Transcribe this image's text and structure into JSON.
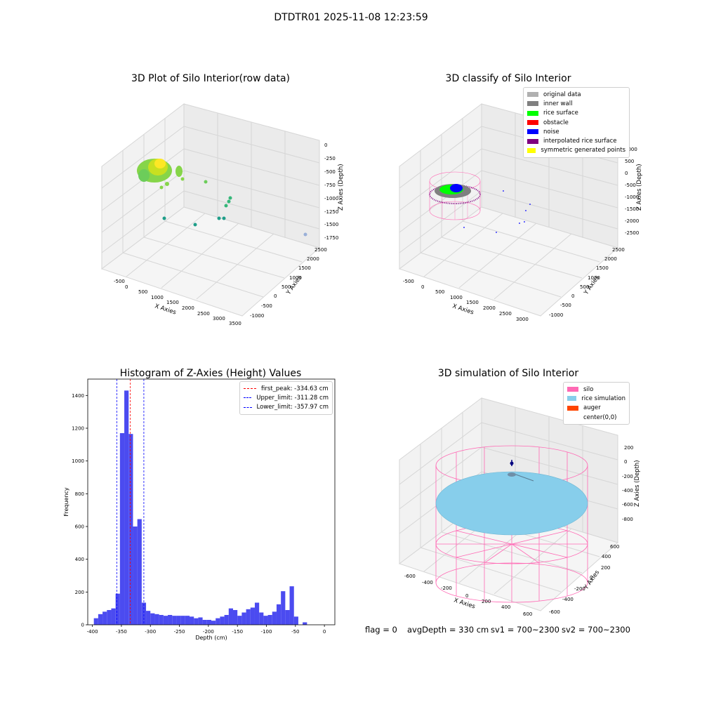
{
  "figure": {
    "suptitle": "DTDTR01 2025-11-08 12:23:59"
  },
  "status": {
    "flag": "flag = 0",
    "avg_depth": "avgDepth = 330 cm",
    "sv1": "sv1 = 700~2300",
    "sv2": "sv2 = 700~2300"
  },
  "colors": {
    "hist_bar": "#4b4bf0",
    "first_peak": "#ff0000",
    "limit": "#0000ff",
    "original_data": "#b0b0b0",
    "inner_wall": "#808080",
    "rice_surface": "#00ff00",
    "obstacle": "#ff0000",
    "noise": "#0000ff",
    "interpolated_rice_surface": "#800080",
    "symmetric_generated_points": "#ffff00",
    "silo": "#ff69b4",
    "rice_simulation": "#87ceeb",
    "auger": "#ff4500"
  },
  "chart_data": [
    {
      "type": "scatter3d",
      "title": "3D Plot of Silo Interior(row data)",
      "xlabel": "X Axies",
      "ylabel": "Y Axies",
      "zlabel": "Z Axies (Depth)",
      "xticks": [
        "-500",
        "0",
        "500",
        "1000",
        "1500",
        "2000",
        "2500",
        "3000",
        "3500"
      ],
      "yticks": [
        "-1000",
        "-500",
        "0",
        "500",
        "1000",
        "1500",
        "2000",
        "2500"
      ],
      "zticks": [
        "0",
        "-250",
        "-500",
        "-750",
        "-1000",
        "-1250",
        "-1500",
        "-1750"
      ]
    },
    {
      "type": "scatter3d",
      "title": "3D classify of Silo Interior",
      "xlabel": "X Axies",
      "ylabel": "Y Axies",
      "zlabel": "Z Axies (Depth)",
      "xticks": [
        "-500",
        "0",
        "500",
        "1000",
        "1500",
        "2000",
        "2500",
        "3000"
      ],
      "yticks": [
        "-1000",
        "-500",
        "0",
        "500",
        "1000",
        "1500",
        "2000",
        "2500"
      ],
      "zticks": [
        "1000",
        "500",
        "0",
        "-500",
        "-1000",
        "-1500",
        "-2000",
        "-2500"
      ],
      "legend": [
        "original data",
        "inner wall",
        "rice surface",
        "obstacle",
        "noise",
        "interpolated rice surface",
        "symmetric generated points"
      ]
    },
    {
      "type": "bar",
      "title": "Histogram of Z-Axies (Height) Values",
      "xlabel": "Depth (cm)",
      "ylabel": "Frequency",
      "xlim": [
        -408,
        18
      ],
      "ylim": [
        0,
        1500
      ],
      "xticks": [
        -400,
        -350,
        -300,
        -250,
        -200,
        -150,
        -100,
        -50,
        0
      ],
      "yticks": [
        0,
        200,
        400,
        600,
        800,
        1000,
        1200,
        1400
      ],
      "bin_width": 7.5,
      "bin_starts": [
        -397.5,
        -390,
        -382.5,
        -375,
        -367.5,
        -360,
        -352.5,
        -345,
        -337.5,
        -330,
        -322.5,
        -315,
        -307.5,
        -300,
        -292.5,
        -285,
        -277.5,
        -270,
        -262.5,
        -255,
        -247.5,
        -240,
        -232.5,
        -225,
        -217.5,
        -210,
        -202.5,
        -195,
        -187.5,
        -180,
        -172.5,
        -165,
        -157.5,
        -150,
        -142.5,
        -135,
        -127.5,
        -120,
        -112.5,
        -105,
        -97.5,
        -90,
        -82.5,
        -75,
        -67.5,
        -60,
        -52.5,
        -45,
        -37.5,
        -30,
        -22.5,
        -15,
        -7.5
      ],
      "values": [
        40,
        65,
        80,
        90,
        100,
        190,
        1170,
        1430,
        1165,
        600,
        645,
        135,
        85,
        70,
        65,
        60,
        55,
        60,
        55,
        55,
        55,
        55,
        50,
        40,
        45,
        30,
        30,
        25,
        40,
        50,
        60,
        100,
        90,
        55,
        75,
        95,
        105,
        135,
        75,
        55,
        60,
        80,
        125,
        205,
        90,
        235,
        50,
        0,
        15,
        0,
        0,
        0,
        0
      ],
      "lines": [
        {
          "name": "first_peak: -334.63 cm",
          "x": -334.63,
          "color": "#ff0000"
        },
        {
          "name": "Upper_limit: -311.28 cm",
          "x": -311.28,
          "color": "#0000ff"
        },
        {
          "name": "Lower_limit: -357.97 cm",
          "x": -357.97,
          "color": "#0000ff"
        }
      ],
      "legend_position": "top-right"
    },
    {
      "type": "surface3d",
      "title": "3D simulation of Silo Interior",
      "xlabel": "X Axies",
      "ylabel": "Y Axies",
      "zlabel": "Z Axies (Depth)",
      "xticks": [
        "-600",
        "-400",
        "-200",
        "0",
        "200",
        "400",
        "600"
      ],
      "yticks": [
        "-600",
        "-400",
        "-200",
        "0",
        "200",
        "400",
        "600"
      ],
      "zticks": [
        "200",
        "0",
        "-200",
        "-400",
        "-600",
        "-800"
      ],
      "legend": [
        "silo",
        "rice simulation",
        "auger",
        "center(0,0)"
      ]
    }
  ]
}
